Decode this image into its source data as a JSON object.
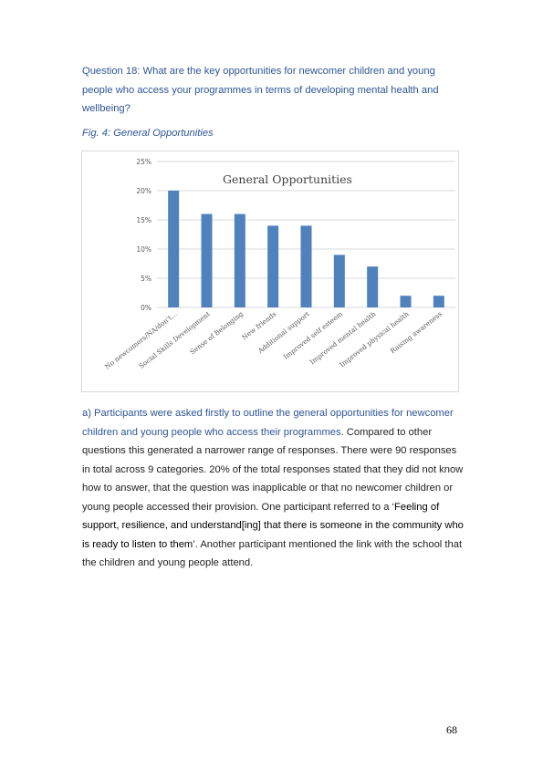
{
  "question": {
    "text": "Question 18: What are the key opportunities for newcomer children and young people who access your programmes in terms of developing mental health and wellbeing?"
  },
  "figure": {
    "caption": "Fig. 4: General Opportunities"
  },
  "chart_data": {
    "type": "bar",
    "title": "General Opportunities",
    "categories": [
      "No newcomers/NA/don't...",
      "Social Skills Development",
      "Sense of Belonging",
      "New friends",
      "Additional support",
      "Improved self esteem",
      "Improved mental health",
      "Improved physical health",
      "Raising awareness"
    ],
    "values": [
      20,
      16,
      16,
      14,
      14,
      9,
      7,
      2,
      2
    ],
    "unit": "%",
    "ylim": [
      0,
      25
    ],
    "yticks": [
      "0%",
      "5%",
      "10%",
      "15%",
      "20%",
      "25%"
    ],
    "ytick_values": [
      0,
      5,
      10,
      15,
      20,
      25
    ],
    "grid": true,
    "legend": "none",
    "bar_color": "#4f81bd"
  },
  "body": {
    "intro_blue": "a) Participants were asked firstly to outline the general opportunities for newcomer children and young people who access their programmes",
    "text_1": ". Compared to other questions this generated a narrower range of responses. There were 90 responses in total across 9 categories. 20% of the total responses stated that they did not know how to answer, that the question was inapplicable or that no newcomer children or young people accessed their provision. One participant referred to a ‘",
    "quote": "Feeling of support, resilience, and understand[ing] that there is someone in the community who is ready to listen to them",
    "text_2": "’. Another participant mentioned the link with the school that the children and young people attend."
  },
  "page_number": "68"
}
